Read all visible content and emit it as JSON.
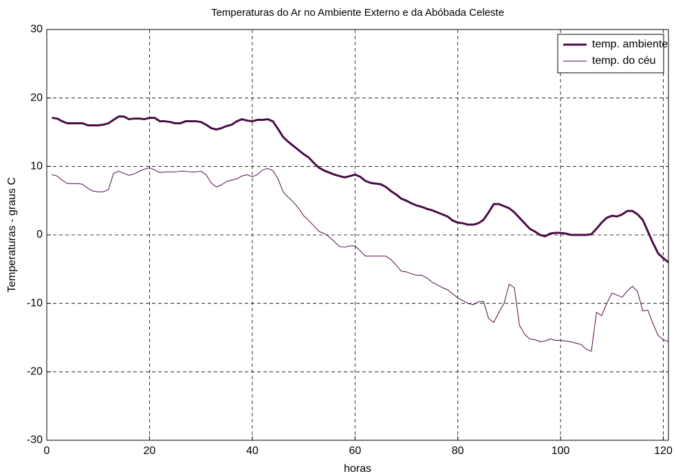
{
  "chart_data": {
    "type": "line",
    "title": "Temperaturas do Ar no Ambiente Externo e da Abóbada Celeste",
    "xlabel": "horas",
    "ylabel": "Temperaturas - graus C",
    "x": [
      1,
      2,
      3,
      4,
      5,
      6,
      7,
      8,
      9,
      10,
      11,
      12,
      13,
      14,
      15,
      16,
      17,
      18,
      19,
      20,
      21,
      22,
      23,
      24,
      25,
      26,
      27,
      28,
      29,
      30,
      31,
      32,
      33,
      34,
      35,
      36,
      37,
      38,
      39,
      40,
      41,
      42,
      43,
      44,
      45,
      46,
      47,
      48,
      49,
      50,
      51,
      52,
      53,
      54,
      55,
      56,
      57,
      58,
      59,
      60,
      61,
      62,
      63,
      64,
      65,
      66,
      67,
      68,
      69,
      70,
      71,
      72,
      73,
      74,
      75,
      76,
      77,
      78,
      79,
      80,
      81,
      82,
      83,
      84,
      85,
      86,
      87,
      88,
      89,
      90,
      91,
      92,
      93,
      94,
      95,
      96,
      97,
      98,
      99,
      100,
      101,
      102,
      103,
      104,
      105,
      106,
      107,
      108,
      109,
      110,
      111,
      112,
      113,
      114,
      115,
      116,
      117,
      118,
      119,
      120,
      121
    ],
    "series": [
      {
        "name": "temp. ambiente",
        "color": "#4a0a46",
        "width": 3,
        "values": [
          17.1,
          17.0,
          16.6,
          16.3,
          16.3,
          16.3,
          16.3,
          16.0,
          16.0,
          16.0,
          16.1,
          16.3,
          16.8,
          17.3,
          17.3,
          16.9,
          17.0,
          17.0,
          16.9,
          17.1,
          17.1,
          16.6,
          16.6,
          16.5,
          16.3,
          16.3,
          16.6,
          16.6,
          16.6,
          16.5,
          16.1,
          15.6,
          15.4,
          15.6,
          15.9,
          16.1,
          16.6,
          16.9,
          16.7,
          16.6,
          16.8,
          16.8,
          16.9,
          16.6,
          15.5,
          14.3,
          13.6,
          13.0,
          12.4,
          11.8,
          11.3,
          10.5,
          9.8,
          9.4,
          9.1,
          8.8,
          8.6,
          8.4,
          8.6,
          8.8,
          8.5,
          7.9,
          7.6,
          7.5,
          7.4,
          7.0,
          6.4,
          5.9,
          5.3,
          5.0,
          4.6,
          4.3,
          4.1,
          3.8,
          3.6,
          3.3,
          3.0,
          2.7,
          2.1,
          1.8,
          1.7,
          1.5,
          1.5,
          1.7,
          2.2,
          3.3,
          4.5,
          4.5,
          4.2,
          3.9,
          3.3,
          2.5,
          1.7,
          0.9,
          0.5,
          0.0,
          -0.2,
          0.2,
          0.3,
          0.3,
          0.2,
          0.0,
          0.0,
          0.0,
          0.0,
          0.1,
          0.9,
          1.8,
          2.5,
          2.8,
          2.7,
          3.0,
          3.5,
          3.5,
          3.0,
          2.2,
          0.5,
          -1.2,
          -2.7,
          -3.4,
          -4.0
        ]
      },
      {
        "name": "temp. do céu",
        "color": "#4a0a46",
        "width": 1,
        "values": [
          8.8,
          8.6,
          8.0,
          7.5,
          7.5,
          7.5,
          7.4,
          6.8,
          6.4,
          6.3,
          6.3,
          6.6,
          9.0,
          9.3,
          9.0,
          8.7,
          8.9,
          9.3,
          9.6,
          9.8,
          9.5,
          9.1,
          9.2,
          9.2,
          9.2,
          9.3,
          9.3,
          9.2,
          9.2,
          9.3,
          8.8,
          7.6,
          7.0,
          7.3,
          7.8,
          8.0,
          8.2,
          8.6,
          8.8,
          8.5,
          8.8,
          9.5,
          9.7,
          9.4,
          8.2,
          6.3,
          5.5,
          4.8,
          3.9,
          2.8,
          2.1,
          1.3,
          0.5,
          0.2,
          -0.3,
          -1.0,
          -1.7,
          -1.8,
          -1.6,
          -1.6,
          -2.3,
          -3.1,
          -3.1,
          -3.1,
          -3.1,
          -3.1,
          -3.6,
          -4.4,
          -5.3,
          -5.4,
          -5.7,
          -5.9,
          -5.9,
          -6.3,
          -6.9,
          -7.3,
          -7.7,
          -8.0,
          -8.6,
          -9.2,
          -9.6,
          -10.0,
          -10.2,
          -9.8,
          -9.7,
          -12.2,
          -12.8,
          -11.3,
          -10.0,
          -7.2,
          -7.7,
          -13.2,
          -14.5,
          -15.2,
          -15.3,
          -15.6,
          -15.5,
          -15.2,
          -15.4,
          -15.4,
          -15.5,
          -15.6,
          -15.8,
          -16.0,
          -16.7,
          -17.0,
          -11.3,
          -11.8,
          -10.0,
          -8.5,
          -8.8,
          -9.1,
          -8.2,
          -7.5,
          -8.3,
          -11.1,
          -11.0,
          -13.0,
          -14.7,
          -15.3,
          -15.6
        ]
      }
    ],
    "xlim": [
      0,
      121
    ],
    "xticks": [
      0,
      20,
      40,
      60,
      80,
      100,
      120
    ],
    "ylim": [
      -30,
      30
    ],
    "yticks": [
      -30,
      -20,
      -10,
      0,
      10,
      20,
      30
    ],
    "grid": true,
    "legend": "upper right"
  }
}
